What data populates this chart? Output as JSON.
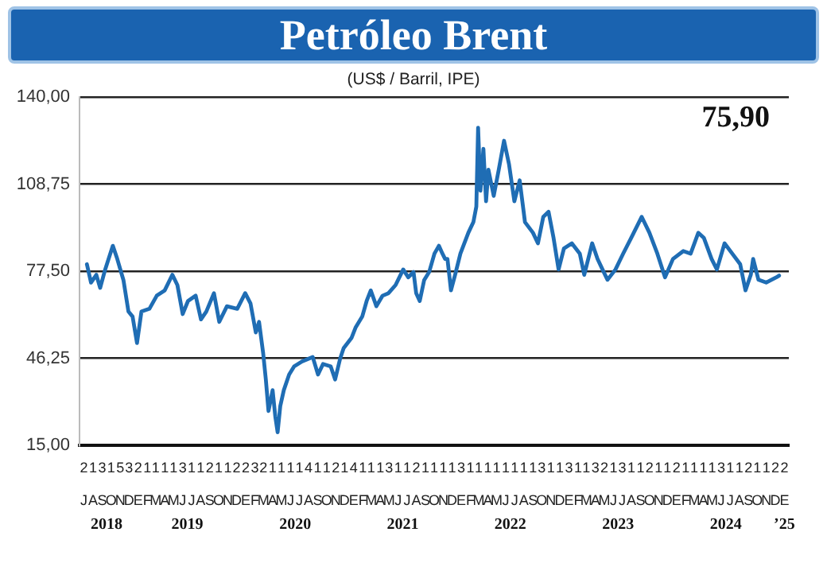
{
  "chart_data": {
    "type": "line",
    "title": "Petróleo Brent",
    "subtitle": "(US$ / Barril, IPE)",
    "grid": "y",
    "legend": false,
    "marker": "none",
    "x": [
      "2018-07-26",
      "2018-08-09",
      "2018-08-27",
      "2018-09-09",
      "2018-09-26",
      "2018-10-22",
      "2018-11-06",
      "2018-11-27",
      "2018-12-14",
      "2018-12-28",
      "2019-01-12",
      "2019-01-27",
      "2019-02-23",
      "2019-03-20",
      "2019-04-16",
      "2019-05-12",
      "2019-05-29",
      "2019-06-16",
      "2019-07-04",
      "2019-07-30",
      "2019-08-17",
      "2019-09-04",
      "2019-09-30",
      "2019-10-18",
      "2019-11-13",
      "2019-12-18",
      "2020-01-14",
      "2020-02-01",
      "2020-02-19",
      "2020-03-01",
      "2020-03-15",
      "2020-03-24",
      "2020-04-02",
      "2020-04-16",
      "2020-04-25",
      "2020-05-03",
      "2020-05-12",
      "2020-05-24",
      "2020-06-11",
      "2020-06-28",
      "2020-07-25",
      "2020-08-30",
      "2020-09-17",
      "2020-10-04",
      "2020-10-30",
      "2020-11-14",
      "2020-12-01",
      "2020-12-13",
      "2021-01-09",
      "2021-01-23",
      "2021-02-14",
      "2021-03-01",
      "2021-03-15",
      "2021-04-03",
      "2021-04-24",
      "2021-05-14",
      "2021-06-07",
      "2021-07-03",
      "2021-07-20",
      "2021-08-07",
      "2021-08-16",
      "2021-08-28",
      "2021-09-12",
      "2021-09-29",
      "2021-10-17",
      "2021-11-01",
      "2021-11-13",
      "2021-11-22",
      "2021-11-30",
      "2021-12-12",
      "2021-12-26",
      "2022-01-13",
      "2022-02-09",
      "2022-02-26",
      "2022-03-08",
      "2022-03-14",
      "2022-03-22",
      "2022-04-01",
      "2022-04-10",
      "2022-04-18",
      "2022-05-06",
      "2022-05-23",
      "2022-06-10",
      "2022-06-27",
      "2022-07-15",
      "2022-08-02",
      "2022-08-20",
      "2022-09-16",
      "2022-10-03",
      "2022-10-21",
      "2022-11-08",
      "2022-11-25",
      "2022-12-12",
      "2022-12-30",
      "2023-01-26",
      "2023-02-22",
      "2023-03-09",
      "2023-04-05",
      "2023-04-23",
      "2023-05-10",
      "2023-05-27",
      "2023-06-23",
      "2023-07-19",
      "2023-08-15",
      "2023-09-20",
      "2023-10-16",
      "2023-11-12",
      "2023-12-08",
      "2024-01-04",
      "2024-02-08",
      "2024-03-04",
      "2024-03-30",
      "2024-04-18",
      "2024-05-14",
      "2024-06-01",
      "2024-06-27",
      "2024-07-23",
      "2024-08-19",
      "2024-09-06",
      "2024-09-24",
      "2024-10-02",
      "2024-10-20",
      "2024-11-15",
      "2024-12-03",
      "2024-12-20",
      "2024-12-29"
    ],
    "series": [
      {
        "color": "#1f6db4",
        "values": [
          80.0,
          73.4,
          76.2,
          71.5,
          78.1,
          86.6,
          81.9,
          74.3,
          63.0,
          61.2,
          51.7,
          63.0,
          64.0,
          68.7,
          70.6,
          76.2,
          72.5,
          62.1,
          66.8,
          68.7,
          60.2,
          63.0,
          69.6,
          59.3,
          64.9,
          64.0,
          69.6,
          65.9,
          55.5,
          59.3,
          48.0,
          38.6,
          27.3,
          34.8,
          25.4,
          19.7,
          29.1,
          34.8,
          40.4,
          43.3,
          45.1,
          46.7,
          40.4,
          44.2,
          43.3,
          38.6,
          46.1,
          49.9,
          53.6,
          57.4,
          61.2,
          66.8,
          70.6,
          64.9,
          68.7,
          69.6,
          72.5,
          78.1,
          75.3,
          77.2,
          69.6,
          66.8,
          74.3,
          77.2,
          83.8,
          86.6,
          83.8,
          81.9,
          81.9,
          70.6,
          76.2,
          83.8,
          91.3,
          95.1,
          100.7,
          129.0,
          106.4,
          121.4,
          102.6,
          113.9,
          104.5,
          113.9,
          124.3,
          115.8,
          102.6,
          110.1,
          95.1,
          91.3,
          87.5,
          97.0,
          98.8,
          89.4,
          78.1,
          85.6,
          87.5,
          83.8,
          76.2,
          87.5,
          81.9,
          78.1,
          74.4,
          78.1,
          83.8,
          89.4,
          97.0,
          91.3,
          83.8,
          75.3,
          81.9,
          84.7,
          83.8,
          91.3,
          89.4,
          81.9,
          78.1,
          87.5,
          83.8,
          80.0,
          70.6,
          76.2,
          81.9,
          74.4,
          73.4,
          74.4,
          75.3,
          75.9
        ]
      }
    ],
    "ylim": [
      15,
      140
    ],
    "yticks": [
      {
        "value": 15,
        "label": "15,00"
      },
      {
        "value": 46.25,
        "label": "46,25"
      },
      {
        "value": 77.5,
        "label": "77,50"
      },
      {
        "value": 108.75,
        "label": "108,75"
      },
      {
        "value": 140,
        "label": "140,00"
      }
    ],
    "xlim": [
      "2018-07-01",
      "2025-01-31"
    ],
    "xticks": [
      {
        "value": "2018-07-16",
        "label": "2\nJ"
      },
      {
        "value": "2018-08-16",
        "label": "1\nA"
      },
      {
        "value": "2018-09-16",
        "label": "3\nS"
      },
      {
        "value": "2018-10-16",
        "label": "1\nO"
      },
      {
        "value": "2018-11-16",
        "label": "5\nN"
      },
      {
        "value": "2018-12-16",
        "label": "3\nD"
      },
      {
        "value": "2019-01-16",
        "label": "2\nE"
      },
      {
        "value": "2019-02-16",
        "label": "1\nF"
      },
      {
        "value": "2019-03-16",
        "label": "1\nM"
      },
      {
        "value": "2019-04-16",
        "label": "1\nA"
      },
      {
        "value": "2019-05-16",
        "label": "1\nM"
      },
      {
        "value": "2019-06-16",
        "label": "3\nJ"
      },
      {
        "value": "2019-07-16",
        "label": "1\nJ"
      },
      {
        "value": "2019-08-16",
        "label": "1\nA"
      },
      {
        "value": "2019-09-16",
        "label": "2\nS"
      },
      {
        "value": "2019-10-16",
        "label": "1\nO"
      },
      {
        "value": "2019-11-16",
        "label": "1\nN"
      },
      {
        "value": "2019-12-16",
        "label": "2\nD"
      },
      {
        "value": "2020-01-16",
        "label": "2\nE"
      },
      {
        "value": "2020-02-16",
        "label": "3\nF"
      },
      {
        "value": "2020-03-16",
        "label": "2\nM"
      },
      {
        "value": "2020-04-16",
        "label": "1\nA"
      },
      {
        "value": "2020-05-16",
        "label": "1\nM"
      },
      {
        "value": "2020-06-16",
        "label": "1\nJ"
      },
      {
        "value": "2020-07-16",
        "label": "1\nJ"
      },
      {
        "value": "2020-08-16",
        "label": "4\nA"
      },
      {
        "value": "2020-09-16",
        "label": "1\nS"
      },
      {
        "value": "2020-10-16",
        "label": "1\nO"
      },
      {
        "value": "2020-11-16",
        "label": "2\nN"
      },
      {
        "value": "2020-12-16",
        "label": "1\nD"
      },
      {
        "value": "2021-01-16",
        "label": "4\nE"
      },
      {
        "value": "2021-02-16",
        "label": "1\nF"
      },
      {
        "value": "2021-03-16",
        "label": "1\nM"
      },
      {
        "value": "2021-04-16",
        "label": "1\nA"
      },
      {
        "value": "2021-05-16",
        "label": "3\nM"
      },
      {
        "value": "2021-06-16",
        "label": "1\nJ"
      },
      {
        "value": "2021-07-16",
        "label": "1\nJ"
      },
      {
        "value": "2021-08-16",
        "label": "2\nA"
      },
      {
        "value": "2021-09-16",
        "label": "1\nS"
      },
      {
        "value": "2021-10-16",
        "label": "1\nO"
      },
      {
        "value": "2021-11-16",
        "label": "1\nN"
      },
      {
        "value": "2021-12-16",
        "label": "1\nD"
      },
      {
        "value": "2022-01-16",
        "label": "3\nE"
      },
      {
        "value": "2022-02-16",
        "label": "1\nF"
      },
      {
        "value": "2022-03-16",
        "label": "1\nM"
      },
      {
        "value": "2022-04-16",
        "label": "1\nA"
      },
      {
        "value": "2022-05-16",
        "label": "1\nM"
      },
      {
        "value": "2022-06-16",
        "label": "1\nJ"
      },
      {
        "value": "2022-07-16",
        "label": "1\nJ"
      },
      {
        "value": "2022-08-16",
        "label": "1\nA"
      },
      {
        "value": "2022-09-16",
        "label": "1\nS"
      },
      {
        "value": "2022-10-16",
        "label": "3\nO"
      },
      {
        "value": "2022-11-16",
        "label": "1\nN"
      },
      {
        "value": "2022-12-16",
        "label": "1\nD"
      },
      {
        "value": "2023-01-16",
        "label": "3\nE"
      },
      {
        "value": "2023-02-16",
        "label": "1\nF"
      },
      {
        "value": "2023-03-16",
        "label": "1\nM"
      },
      {
        "value": "2023-04-16",
        "label": "3\nA"
      },
      {
        "value": "2023-05-16",
        "label": "2\nM"
      },
      {
        "value": "2023-06-16",
        "label": "1\nJ"
      },
      {
        "value": "2023-07-16",
        "label": "3\nJ"
      },
      {
        "value": "2023-08-16",
        "label": "1\nA"
      },
      {
        "value": "2023-09-16",
        "label": "1\nS"
      },
      {
        "value": "2023-10-16",
        "label": "2\nO"
      },
      {
        "value": "2023-11-16",
        "label": "1\nN"
      },
      {
        "value": "2023-12-16",
        "label": "1\nD"
      },
      {
        "value": "2024-01-16",
        "label": "2\nE"
      },
      {
        "value": "2024-02-16",
        "label": "1\nF"
      },
      {
        "value": "2024-03-16",
        "label": "1\nM"
      },
      {
        "value": "2024-04-16",
        "label": "1\nA"
      },
      {
        "value": "2024-05-16",
        "label": "1\nM"
      },
      {
        "value": "2024-06-16",
        "label": "3\nJ"
      },
      {
        "value": "2024-07-16",
        "label": "1\nJ"
      },
      {
        "value": "2024-08-16",
        "label": "1\nA"
      },
      {
        "value": "2024-09-16",
        "label": "2\nS"
      },
      {
        "value": "2024-10-16",
        "label": "1\nO"
      },
      {
        "value": "2024-11-16",
        "label": "1\nN"
      },
      {
        "value": "2024-12-16",
        "label": "2\nD"
      },
      {
        "value": "2025-01-16",
        "label": "2\nE"
      }
    ],
    "annotations": [
      "75,90",
      "2018",
      "2019",
      "2020",
      "2021",
      "2022",
      "2023",
      "2024",
      "’25"
    ]
  }
}
